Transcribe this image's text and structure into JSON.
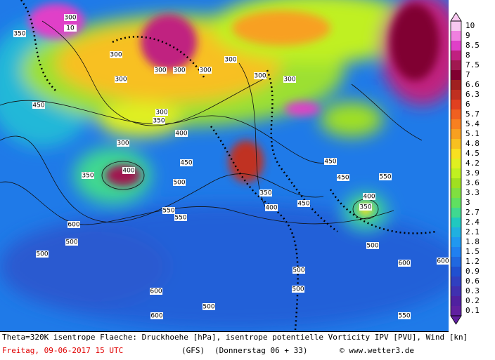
{
  "colorbar": {
    "ticks": [
      "10",
      "9",
      "8.5",
      "8",
      "7.5",
      "7",
      "6.6",
      "6.3",
      "6",
      "5.7",
      "5.4",
      "5.1",
      "4.8",
      "4.5",
      "4.2",
      "3.9",
      "3.6",
      "3.3",
      "3",
      "2.7",
      "2.4",
      "2.1",
      "1.8",
      "1.5",
      "1.2",
      "0.9",
      "0.6",
      "0.3",
      "0.2",
      "0.1"
    ],
    "colors": [
      "#f8c8f0",
      "#f080e0",
      "#e040c8",
      "#c02080",
      "#a01850",
      "#800030",
      "#a02020",
      "#c03020",
      "#e04020",
      "#f06020",
      "#f88020",
      "#f8a020",
      "#f8c020",
      "#f8e020",
      "#e0f020",
      "#c0f020",
      "#a0e020",
      "#80e040",
      "#60e060",
      "#40d890",
      "#20c8c0",
      "#20b0e0",
      "#2098f0",
      "#2080f0",
      "#2068e0",
      "#2050d0",
      "#3040c0",
      "#4030b0",
      "#5020a0",
      "#6020a0"
    ]
  },
  "map": {
    "contour_labels": [
      "300",
      "10",
      "350",
      "300",
      "300",
      "300",
      "300",
      "300",
      "300",
      "300",
      "300",
      "450",
      "300",
      "400",
      "350",
      "300",
      "350",
      "400",
      "450",
      "500",
      "350",
      "400",
      "450",
      "550",
      "550",
      "600",
      "500",
      "500",
      "450",
      "400",
      "350",
      "450",
      "500",
      "550",
      "600",
      "500",
      "500",
      "600",
      "600",
      "500",
      "550",
      "600"
    ]
  },
  "footer": {
    "description": "Theta=320K isentrope Flaeche: Druckhoehe [hPa], isentrope potentielle Vorticity IPV [PVU], Wind [kn]",
    "date": "Freitag, 09-06-2017  15 UTC",
    "model": "(GFS)",
    "run": "(Donnerstag 06 + 33)",
    "credit": "© www.wetter3.de"
  }
}
